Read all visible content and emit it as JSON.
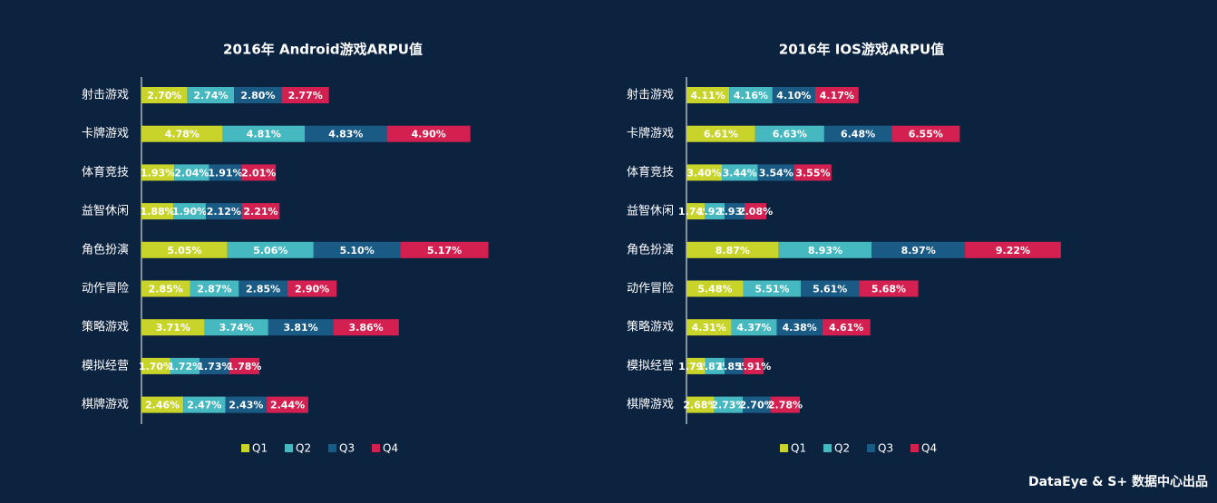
{
  "chart_data": [
    {
      "type": "bar",
      "orientation": "horizontal",
      "stacked": true,
      "title": "2016年 Android游戏ARPU值",
      "categories": [
        "射击游戏",
        "卡牌游戏",
        "体育竞技",
        "益智休闲",
        "角色扮演",
        "动作冒险",
        "策略游戏",
        "模拟经营",
        "棋牌游戏"
      ],
      "xlim": [
        0,
        22
      ],
      "legend": "bottom",
      "series": [
        {
          "name": "Q1",
          "color": "#c8d42a",
          "values": [
            2.7,
            4.78,
            1.93,
            1.88,
            5.05,
            2.85,
            3.71,
            1.7,
            2.46
          ],
          "value_labels": [
            "2.70%",
            "4.78%",
            "1.93%",
            "1.88%",
            "5.05%",
            "2.85%",
            "3.71%",
            "1.70%",
            "2.46%"
          ]
        },
        {
          "name": "Q2",
          "color": "#45b8c0",
          "values": [
            2.74,
            4.81,
            2.04,
            1.9,
            5.06,
            2.87,
            3.74,
            1.72,
            2.47
          ],
          "value_labels": [
            "2.74%",
            "4.81%",
            "2.04%",
            "1.90%",
            "5.06%",
            "2.87%",
            "3.74%",
            "1.72%",
            "2.47%"
          ]
        },
        {
          "name": "Q3",
          "color": "#1a5b86",
          "values": [
            2.8,
            4.83,
            1.91,
            2.12,
            5.1,
            2.85,
            3.81,
            1.73,
            2.43
          ],
          "value_labels": [
            "2.80%",
            "4.83%",
            "1.91%",
            "2.12%",
            "5.10%",
            "2.85%",
            "3.81%",
            "1.73%",
            "2.43%"
          ]
        },
        {
          "name": "Q4",
          "color": "#d42050",
          "values": [
            2.77,
            4.9,
            2.01,
            2.21,
            5.17,
            2.9,
            3.86,
            1.78,
            2.44
          ],
          "value_labels": [
            "2.77%",
            "4.90%",
            "2.01%",
            "2.21%",
            "5.17%",
            "2.90%",
            "3.86%",
            "1.78%",
            "2.44%"
          ]
        }
      ]
    },
    {
      "type": "bar",
      "orientation": "horizontal",
      "stacked": true,
      "title": "2016年 IOS游戏ARPU值",
      "categories": [
        "射击游戏",
        "卡牌游戏",
        "体育竞技",
        "益智休闲",
        "角色扮演",
        "动作冒险",
        "策略游戏",
        "模拟经营",
        "棋牌游戏"
      ],
      "xlim": [
        0,
        36
      ],
      "legend": "bottom",
      "series": [
        {
          "name": "Q1",
          "color": "#c8d42a",
          "values": [
            4.11,
            6.61,
            3.4,
            1.74,
            8.87,
            5.48,
            4.31,
            1.79,
            2.68
          ],
          "value_labels": [
            "4.11%",
            "6.61%",
            "3.40%",
            "1.74%",
            "8.87%",
            "5.48%",
            "4.31%",
            "1.79%",
            "2.68%"
          ]
        },
        {
          "name": "Q2",
          "color": "#45b8c0",
          "values": [
            4.16,
            6.63,
            3.44,
            1.92,
            8.93,
            5.51,
            4.37,
            1.87,
            2.73
          ],
          "value_labels": [
            "4.16%",
            "6.63%",
            "3.44%",
            "1.92%",
            "8.93%",
            "5.51%",
            "4.37%",
            "1.87%",
            "2.73%"
          ]
        },
        {
          "name": "Q3",
          "color": "#1a5b86",
          "values": [
            4.1,
            6.48,
            3.54,
            1.93,
            8.97,
            5.61,
            4.38,
            1.85,
            2.7
          ],
          "value_labels": [
            "4.10%",
            "6.48%",
            "3.54%",
            "1.93%",
            "8.97%",
            "5.61%",
            "4.38%",
            "1.85%",
            "2.70%"
          ]
        },
        {
          "name": "Q4",
          "color": "#d42050",
          "values": [
            4.17,
            6.55,
            3.55,
            2.08,
            9.22,
            5.68,
            4.61,
            1.91,
            2.78
          ],
          "value_labels": [
            "4.17%",
            "6.55%",
            "3.55%",
            "2.08%",
            "9.22%",
            "5.68%",
            "4.61%",
            "1.91%",
            "2.78%"
          ]
        }
      ]
    }
  ],
  "source": "DataEye & S+ 数据中心出品"
}
